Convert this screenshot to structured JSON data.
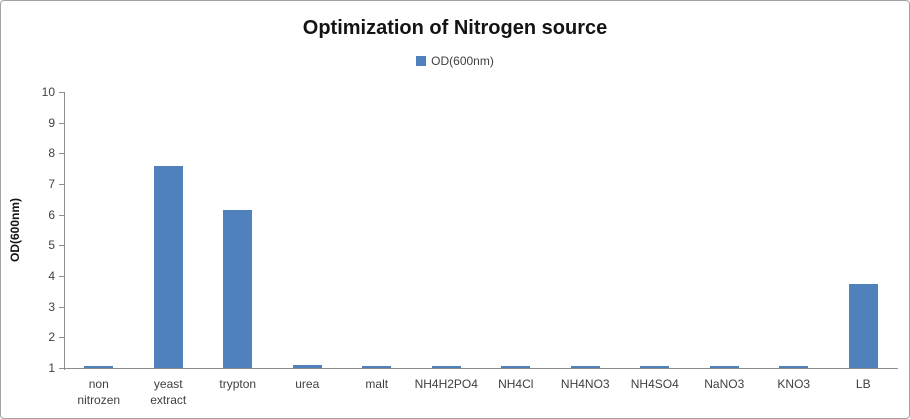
{
  "title": "Optimization of Nitrogen source",
  "legend": {
    "label": "OD(600nm)"
  },
  "colors": {
    "bar": "#4f81bd",
    "axis": "#8c8c8c",
    "frame_border": "#a3a3a3",
    "title_text": "#141414",
    "label_text": "#3f3f3f"
  },
  "chart_data": {
    "type": "bar",
    "title": "Optimization of Nitrogen source",
    "xlabel": "",
    "ylabel": "OD(600nm)",
    "legend_entries": [
      "OD(600nm)"
    ],
    "legend_position": "top-center",
    "grid": false,
    "categories": [
      "non\nnitrozen",
      "yeast\nextract",
      "trypton",
      "urea",
      "malt",
      "NH4H2PO4",
      "NH4Cl",
      "NH4NO3",
      "NH4SO4",
      "NaNO3",
      "KNO3",
      "LB"
    ],
    "values": [
      1.02,
      7.6,
      6.15,
      1.1,
      1.02,
      1.02,
      1.02,
      1.02,
      1.02,
      1.02,
      1.02,
      3.75
    ],
    "ylim": [
      1,
      10
    ],
    "yticks": [
      1,
      2,
      3,
      4,
      5,
      6,
      7,
      8,
      9,
      10
    ]
  }
}
